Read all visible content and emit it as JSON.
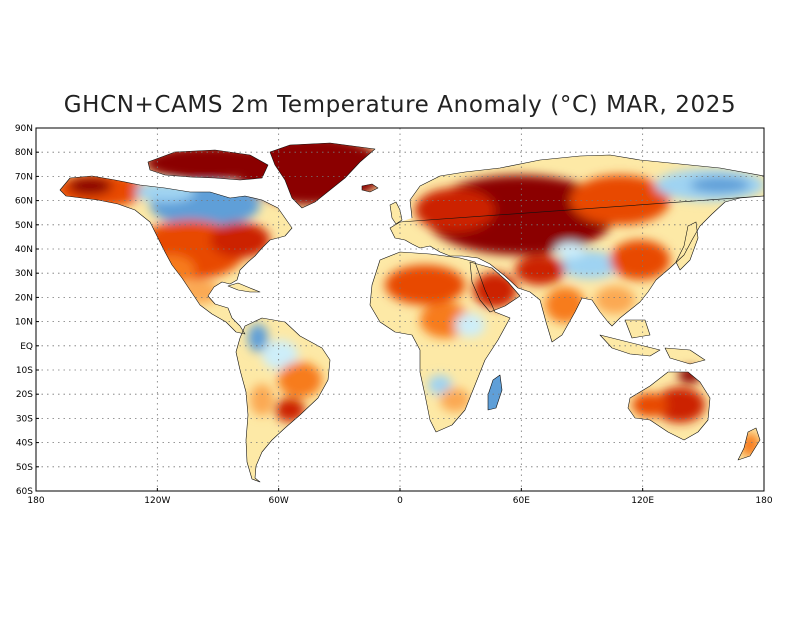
{
  "title": "GHCN+CAMS 2m Temperature Anomaly (°C) MAR, 2025",
  "colors": {
    "strong_warm": "#8b0000",
    "warm_red": "#cc2200",
    "warm_orange_red": "#e84a00",
    "warm_orange": "#f77b1c",
    "warm_light_orange": "#fba953",
    "warm_pale": "#fde9a6",
    "cool_pale": "#cdeef9",
    "cool_light": "#9fd3f2",
    "cool_blue": "#5f9fd8",
    "ocean": "#ffffff"
  },
  "map": {
    "projection": "equirectangular",
    "lon_range": [
      -180,
      180
    ],
    "lat_range": [
      -60,
      90
    ],
    "y_ticks": [
      "90N",
      "80N",
      "70N",
      "60N",
      "50N",
      "40N",
      "30N",
      "20N",
      "10N",
      "EQ",
      "10S",
      "20S",
      "30S",
      "40S",
      "50S",
      "60S"
    ],
    "x_ticks": [
      "180",
      "120W",
      "60W",
      "0",
      "60E",
      "120E",
      "180"
    ]
  },
  "regions": [
    {
      "name": "greenland",
      "anomaly": "strong-warm"
    },
    {
      "name": "canadian-arctic",
      "anomaly": "strong-warm"
    },
    {
      "name": "alaska",
      "anomaly": "warm"
    },
    {
      "name": "central-canada",
      "anomaly": "cool"
    },
    {
      "name": "united-states",
      "anomaly": "warm"
    },
    {
      "name": "mexico",
      "anomaly": "warm"
    },
    {
      "name": "south-america",
      "anomaly": "mixed-warm"
    },
    {
      "name": "europe-russia",
      "anomaly": "strong-warm"
    },
    {
      "name": "eastern-siberia",
      "anomaly": "cool"
    },
    {
      "name": "africa",
      "anomaly": "warm"
    },
    {
      "name": "middle-east",
      "anomaly": "warm"
    },
    {
      "name": "south-asia",
      "anomaly": "warm"
    },
    {
      "name": "tibet",
      "anomaly": "cool"
    },
    {
      "name": "australia",
      "anomaly": "warm"
    },
    {
      "name": "new-zealand",
      "anomaly": "warm"
    }
  ]
}
